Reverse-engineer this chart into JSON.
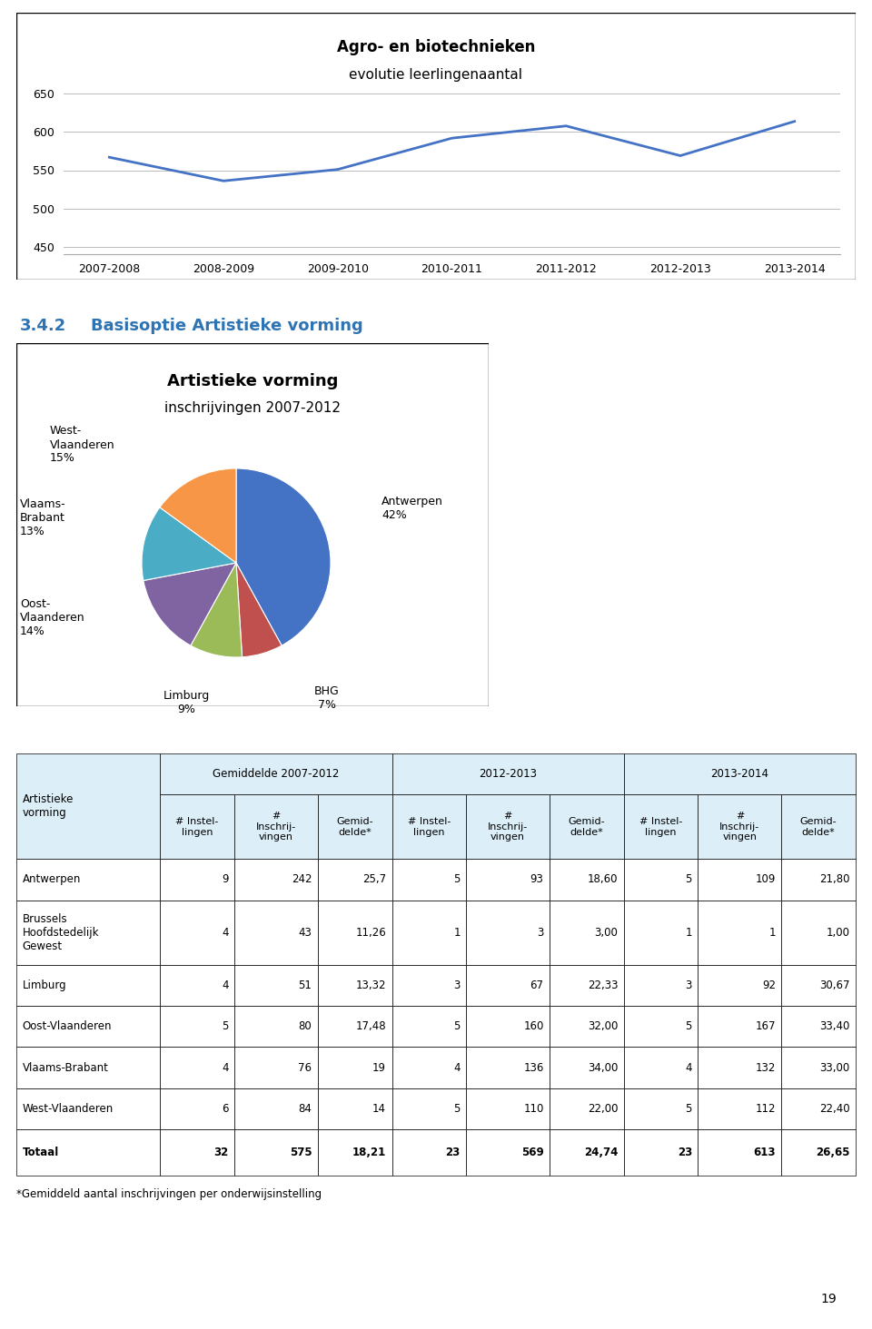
{
  "line_chart": {
    "title_bold": "Agro- en biotechnieken",
    "title_sub": "evolutie leerlingenaantal",
    "x_labels": [
      "2007-2008",
      "2008-2009",
      "2009-2010",
      "2010-2011",
      "2011-2012",
      "2012-2013",
      "2013-2014"
    ],
    "y_values": [
      567,
      536,
      551,
      592,
      608,
      569,
      614
    ],
    "y_ticks": [
      450,
      500,
      550,
      600,
      650
    ],
    "y_min": 440,
    "y_max": 660,
    "line_color": "#4472C4",
    "line_width": 2.0
  },
  "section_title_num": "3.4.2",
  "section_title_text": "Basisoptie Artistieke vorming",
  "pie_chart": {
    "title_bold": "Artistieke vorming",
    "title_sub": "inschrijvingen 2007-2012",
    "values": [
      42,
      7,
      9,
      14,
      13,
      15
    ],
    "colors": [
      "#4472C4",
      "#C0504D",
      "#9BBB59",
      "#8064A2",
      "#4BACC6",
      "#F79646"
    ],
    "startangle": 90
  },
  "table": {
    "section_headers": [
      "Gemiddelde 2007-2012",
      "2012-2013",
      "2013-2014"
    ],
    "col_headers": [
      "# Instel-\nlingen",
      "#\nInschrij-\nvingen",
      "Gemid-\ndelde*",
      "# Instel-\nlingen",
      "#\nInschrij-\nvingen",
      "Gemid-\ndelde*",
      "# Instel-\nlingen",
      "#\nInschrij-\nvingen",
      "Gemid-\ndelde*"
    ],
    "row_label": "Artistieke\nvorming",
    "rows": [
      [
        "Antwerpen",
        "9",
        "242",
        "25,7",
        "5",
        "93",
        "18,60",
        "5",
        "109",
        "21,80"
      ],
      [
        "Brussels\nHoofdstedelijk\nGewest",
        "4",
        "43",
        "11,26",
        "1",
        "3",
        "3,00",
        "1",
        "1",
        "1,00"
      ],
      [
        "Limburg",
        "4",
        "51",
        "13,32",
        "3",
        "67",
        "22,33",
        "3",
        "92",
        "30,67"
      ],
      [
        "Oost-Vlaanderen",
        "5",
        "80",
        "17,48",
        "5",
        "160",
        "32,00",
        "5",
        "167",
        "33,40"
      ],
      [
        "Vlaams-Brabant",
        "4",
        "76",
        "19",
        "4",
        "136",
        "34,00",
        "4",
        "132",
        "33,00"
      ],
      [
        "West-Vlaanderen",
        "6",
        "84",
        "14",
        "5",
        "110",
        "22,00",
        "5",
        "112",
        "22,40"
      ],
      [
        "Totaal",
        "32",
        "575",
        "18,21",
        "23",
        "569",
        "24,74",
        "23",
        "613",
        "26,65"
      ]
    ],
    "footnote": "*Gemiddeld aantal inschrijvingen per onderwijsinstelling",
    "header_bg": "#DCEEF8",
    "data_bg": "#FFFFFF",
    "border_color": "#000000"
  },
  "page_number": "19"
}
